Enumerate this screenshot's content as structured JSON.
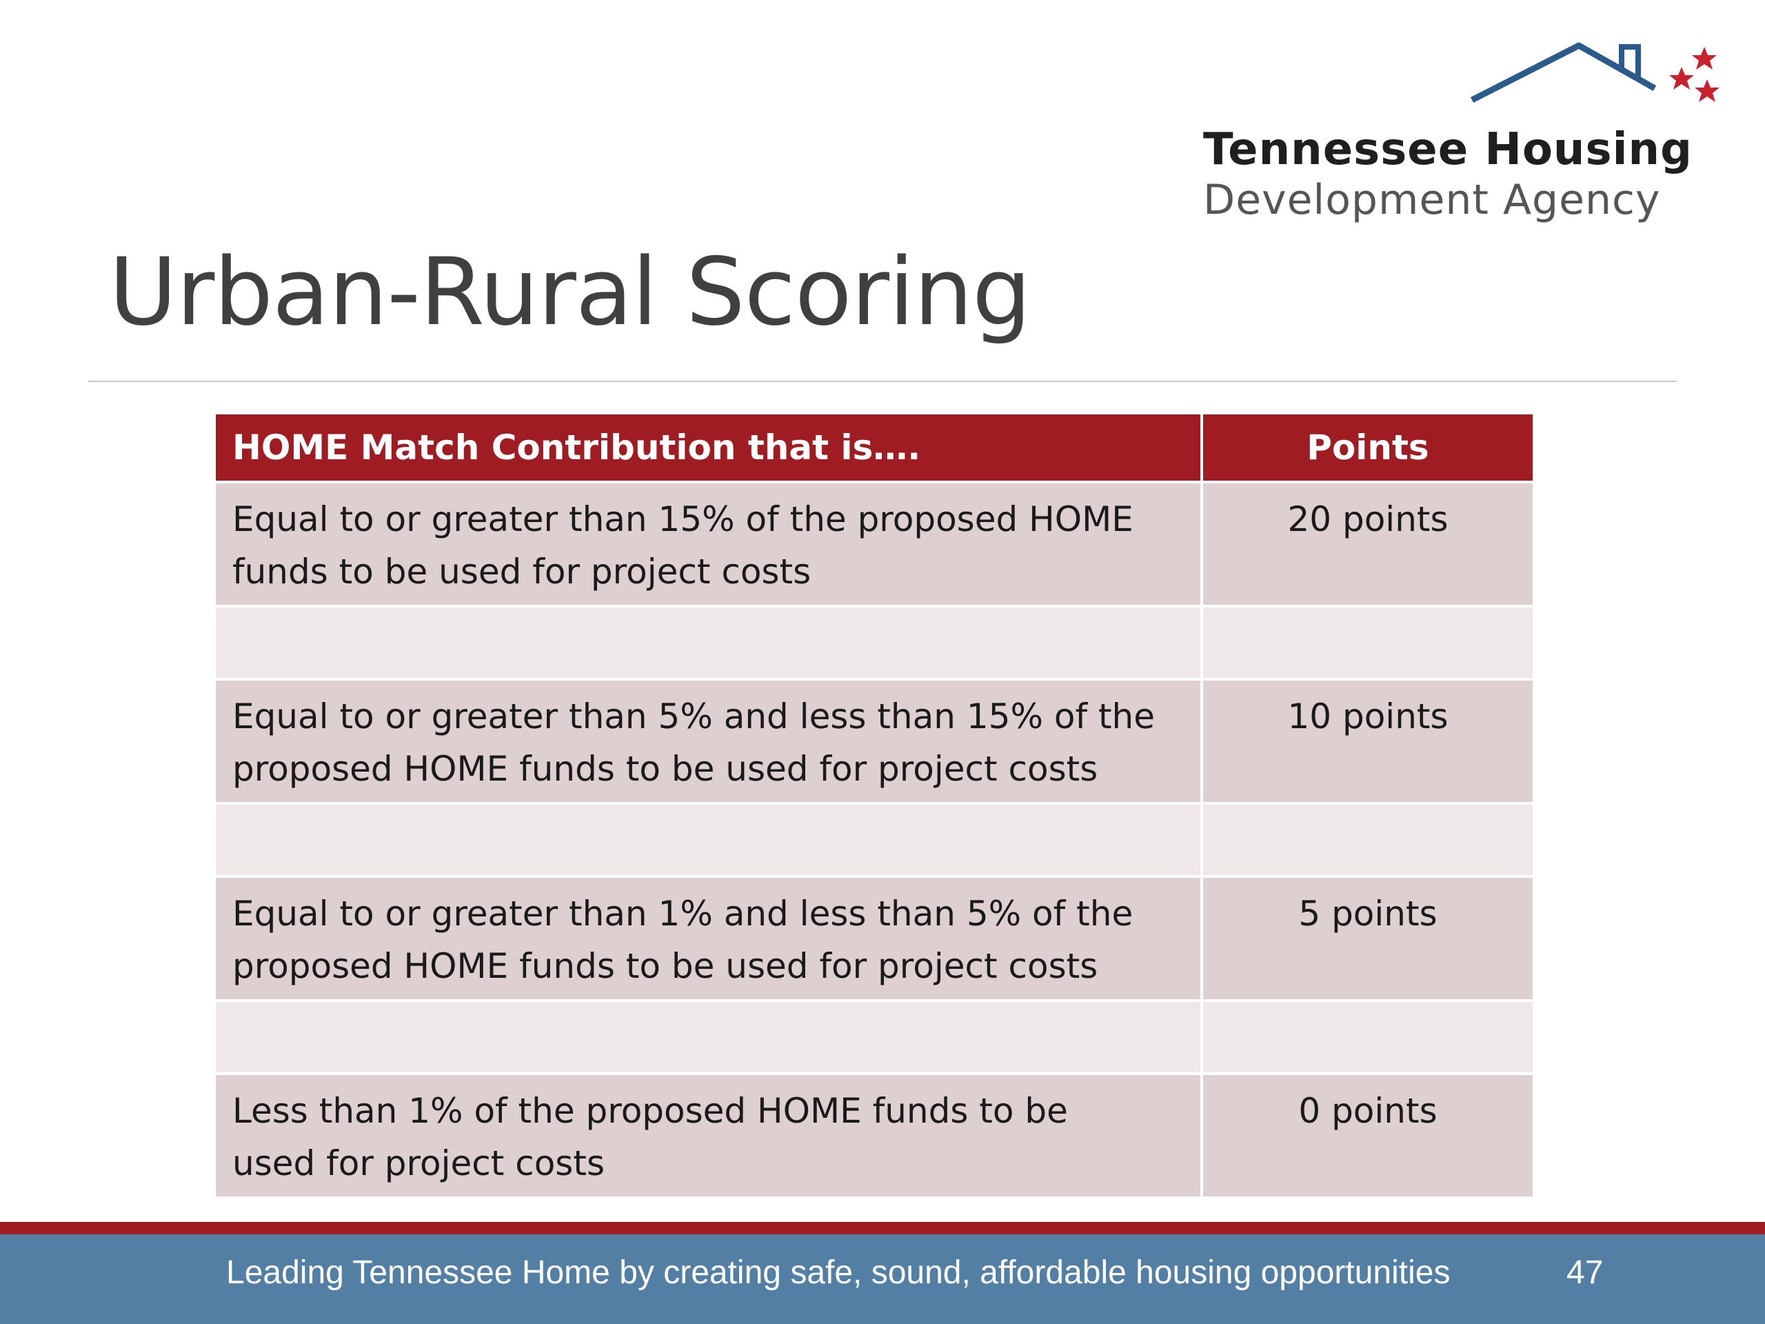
{
  "logo": {
    "line1": "Tennessee Housing",
    "line2": "Development Agency",
    "roof_color": "#2b5a8c",
    "star_color": "#c8232c"
  },
  "slide": {
    "title": "Urban-Rural Scoring"
  },
  "table": {
    "header": {
      "col1": "HOME Match Contribution that is….",
      "col2": "Points"
    },
    "rows": [
      {
        "line1": "Equal to or greater than 15% of the proposed HOME",
        "line2": "funds to be used for project costs",
        "points": "20 points"
      },
      {
        "line1": "Equal to or greater than 5% and less than 15% of the",
        "line2": "proposed HOME funds to be used for project costs",
        "points": "10 points"
      },
      {
        "line1": "Equal to or greater than 1% and less than 5% of the",
        "line2": "proposed HOME funds to be used for project costs",
        "points": "5 points"
      },
      {
        "line1": "Less than 1% of the proposed HOME funds to be",
        "line2": "used for project costs",
        "points": "0 points"
      }
    ]
  },
  "footer": {
    "tagline": "Leading Tennessee Home by creating safe, sound, affordable housing opportunities",
    "page_number": "47",
    "bar_color": "#527fa3",
    "accent_color": "#9e1c22"
  }
}
